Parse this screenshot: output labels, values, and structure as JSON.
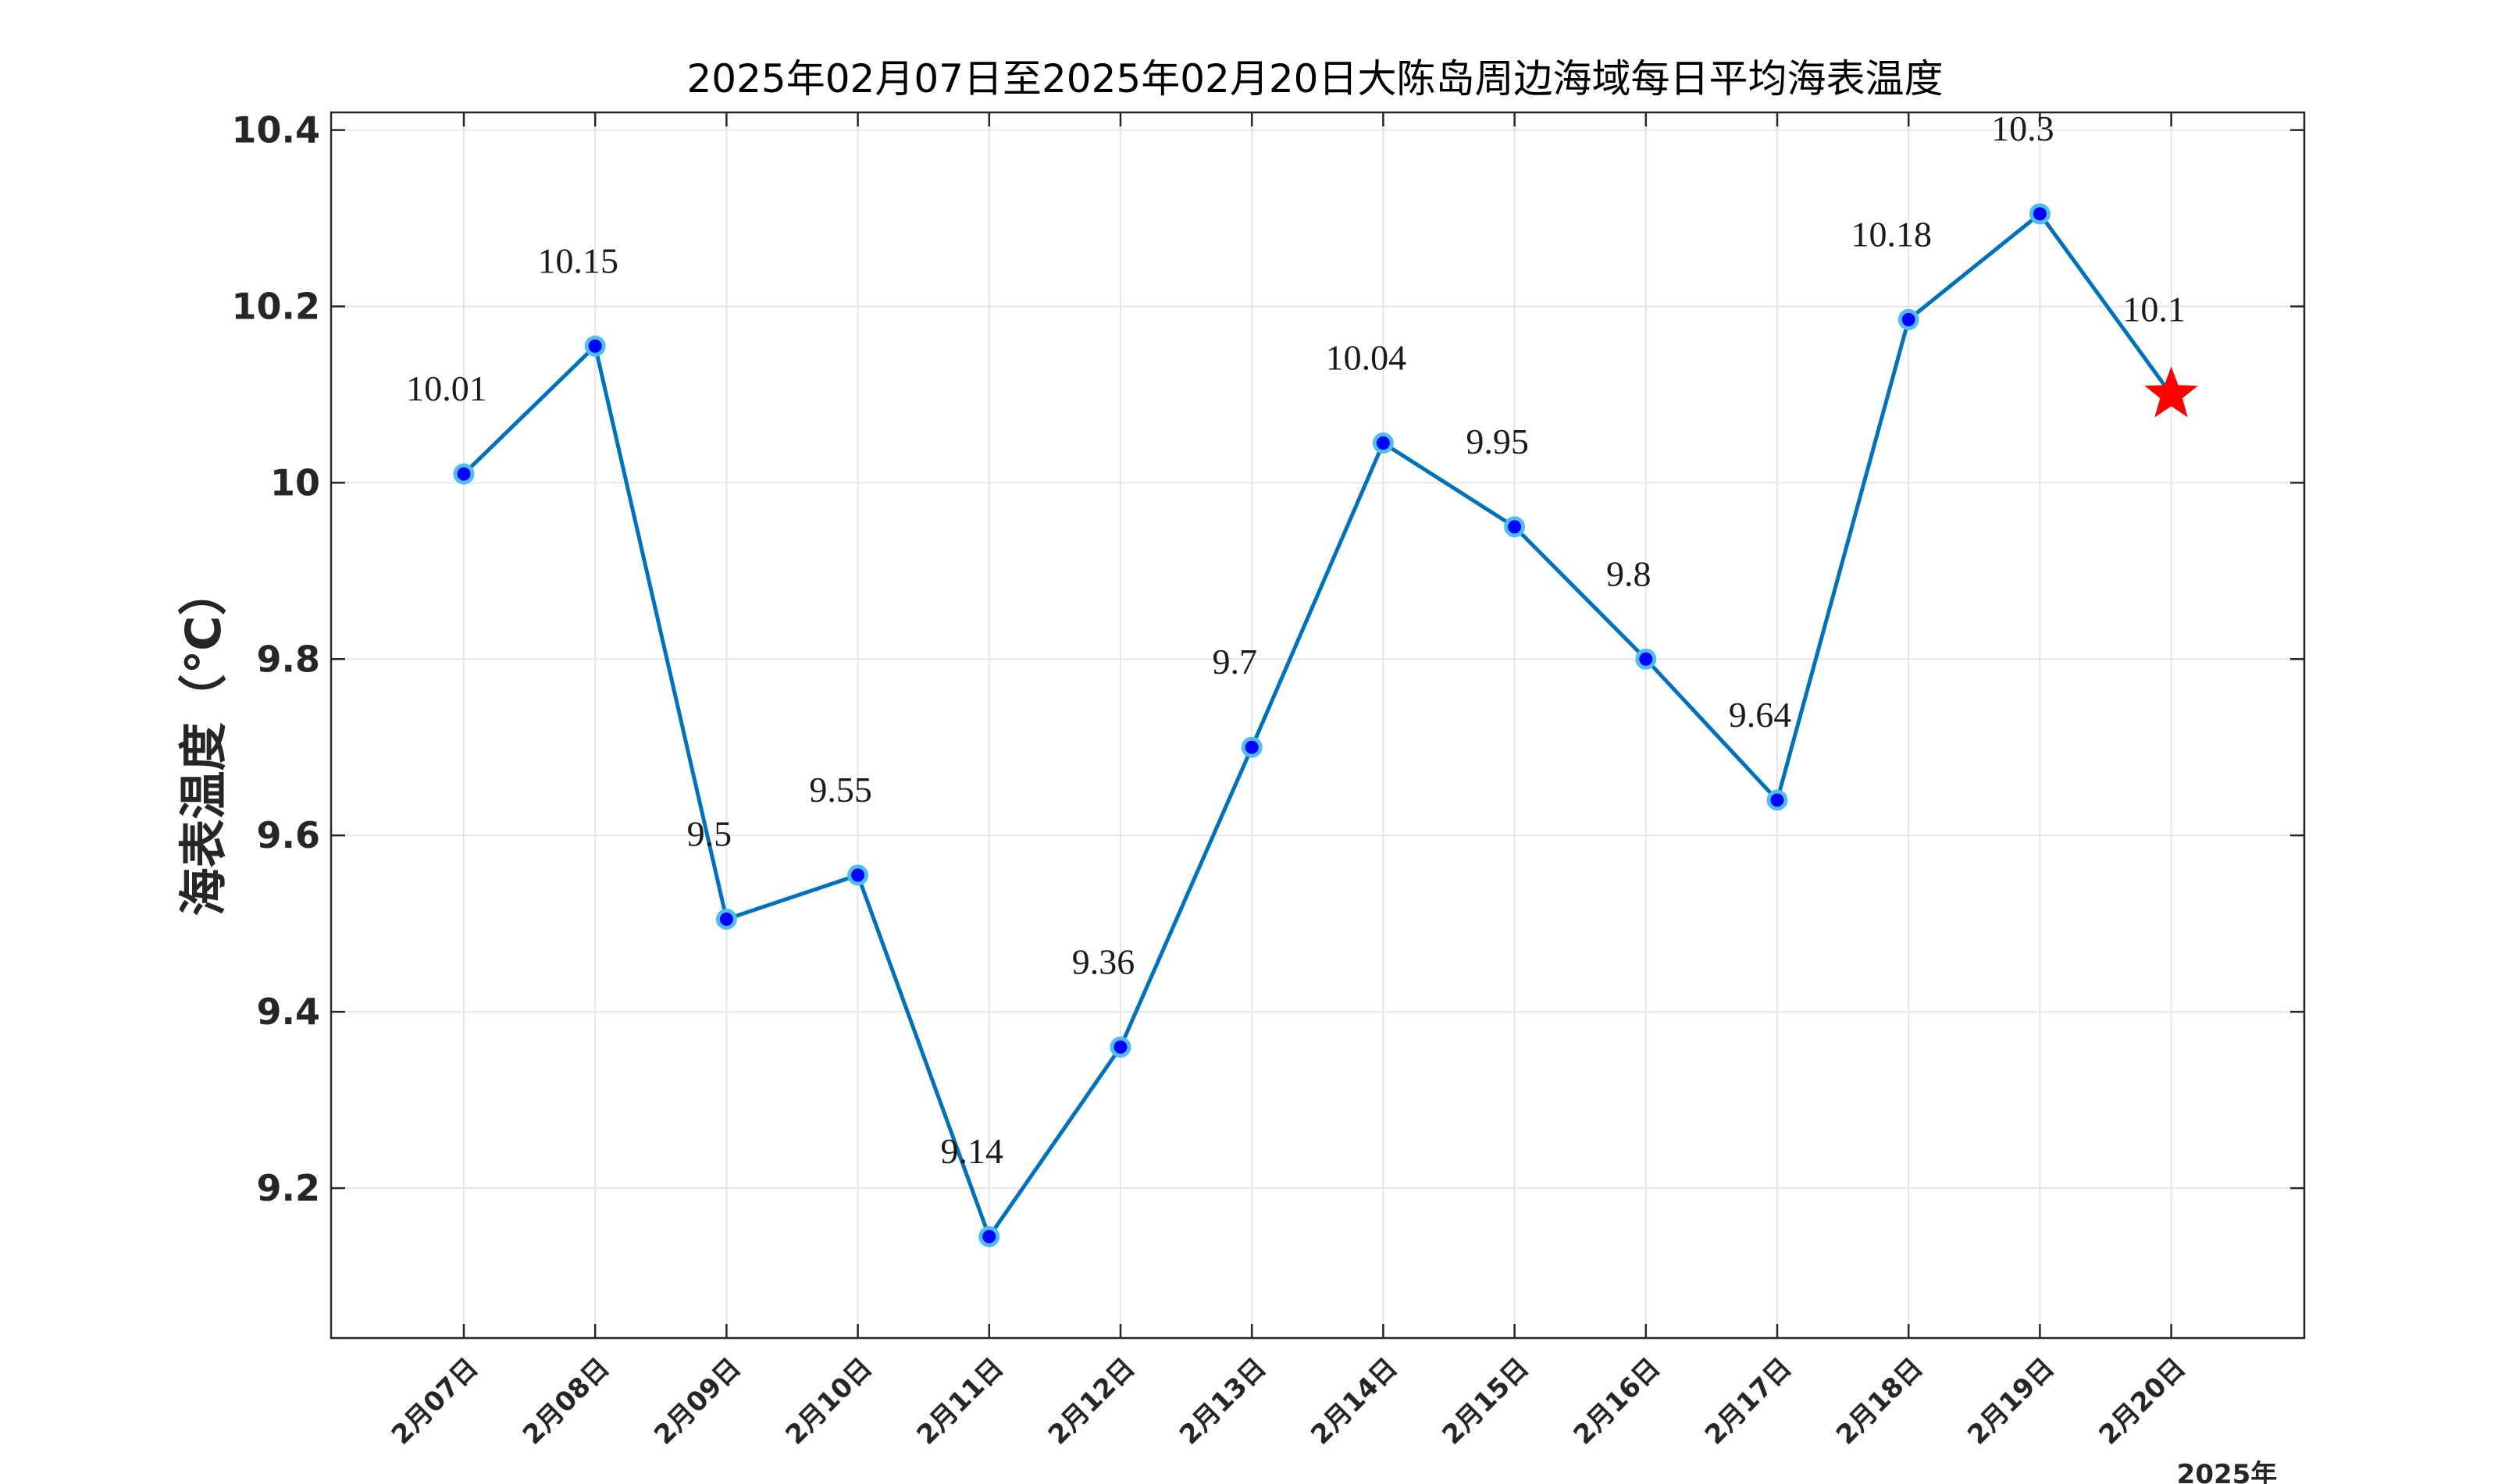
{
  "chart_data": {
    "type": "line",
    "title": "2025年02月07日至2025年02月20日大陈岛周边海域每日平均海表温度",
    "ylabel": "海表温度（℃）",
    "xlabel": "",
    "x_note": "2025年",
    "categories": [
      "2月07日",
      "2月08日",
      "2月09日",
      "2月10日",
      "2月11日",
      "2月12日",
      "2月13日",
      "2月14日",
      "2月15日",
      "2月16日",
      "2月17日",
      "2月18日",
      "2月19日",
      "2月20日"
    ],
    "values": [
      10.01,
      10.155,
      9.505,
      9.555,
      9.145,
      9.36,
      9.7,
      10.045,
      9.95,
      9.8,
      9.64,
      10.185,
      10.305,
      10.1
    ],
    "data_labels": [
      "10.01",
      "10.15",
      "9.5",
      "9.55",
      "9.14",
      "9.36",
      "9.7",
      "10.04",
      "9.95",
      "9.8",
      "9.64",
      "10.18",
      "10.3",
      "10.1"
    ],
    "ylim": [
      9.03,
      10.42
    ],
    "yticks": [
      9.2,
      9.4,
      9.6,
      9.8,
      10,
      10.2,
      10.4
    ],
    "ytick_labels": [
      "9.2",
      "9.4",
      "9.6",
      "9.8",
      "10",
      "10.2",
      "10.4"
    ],
    "grid": true,
    "colors": {
      "line": "#0072BD",
      "marker_fill": "#0000FF",
      "marker_edge": "#4DBEEE",
      "forecast_star": "#FF0000"
    },
    "last_point_marker": "star"
  }
}
